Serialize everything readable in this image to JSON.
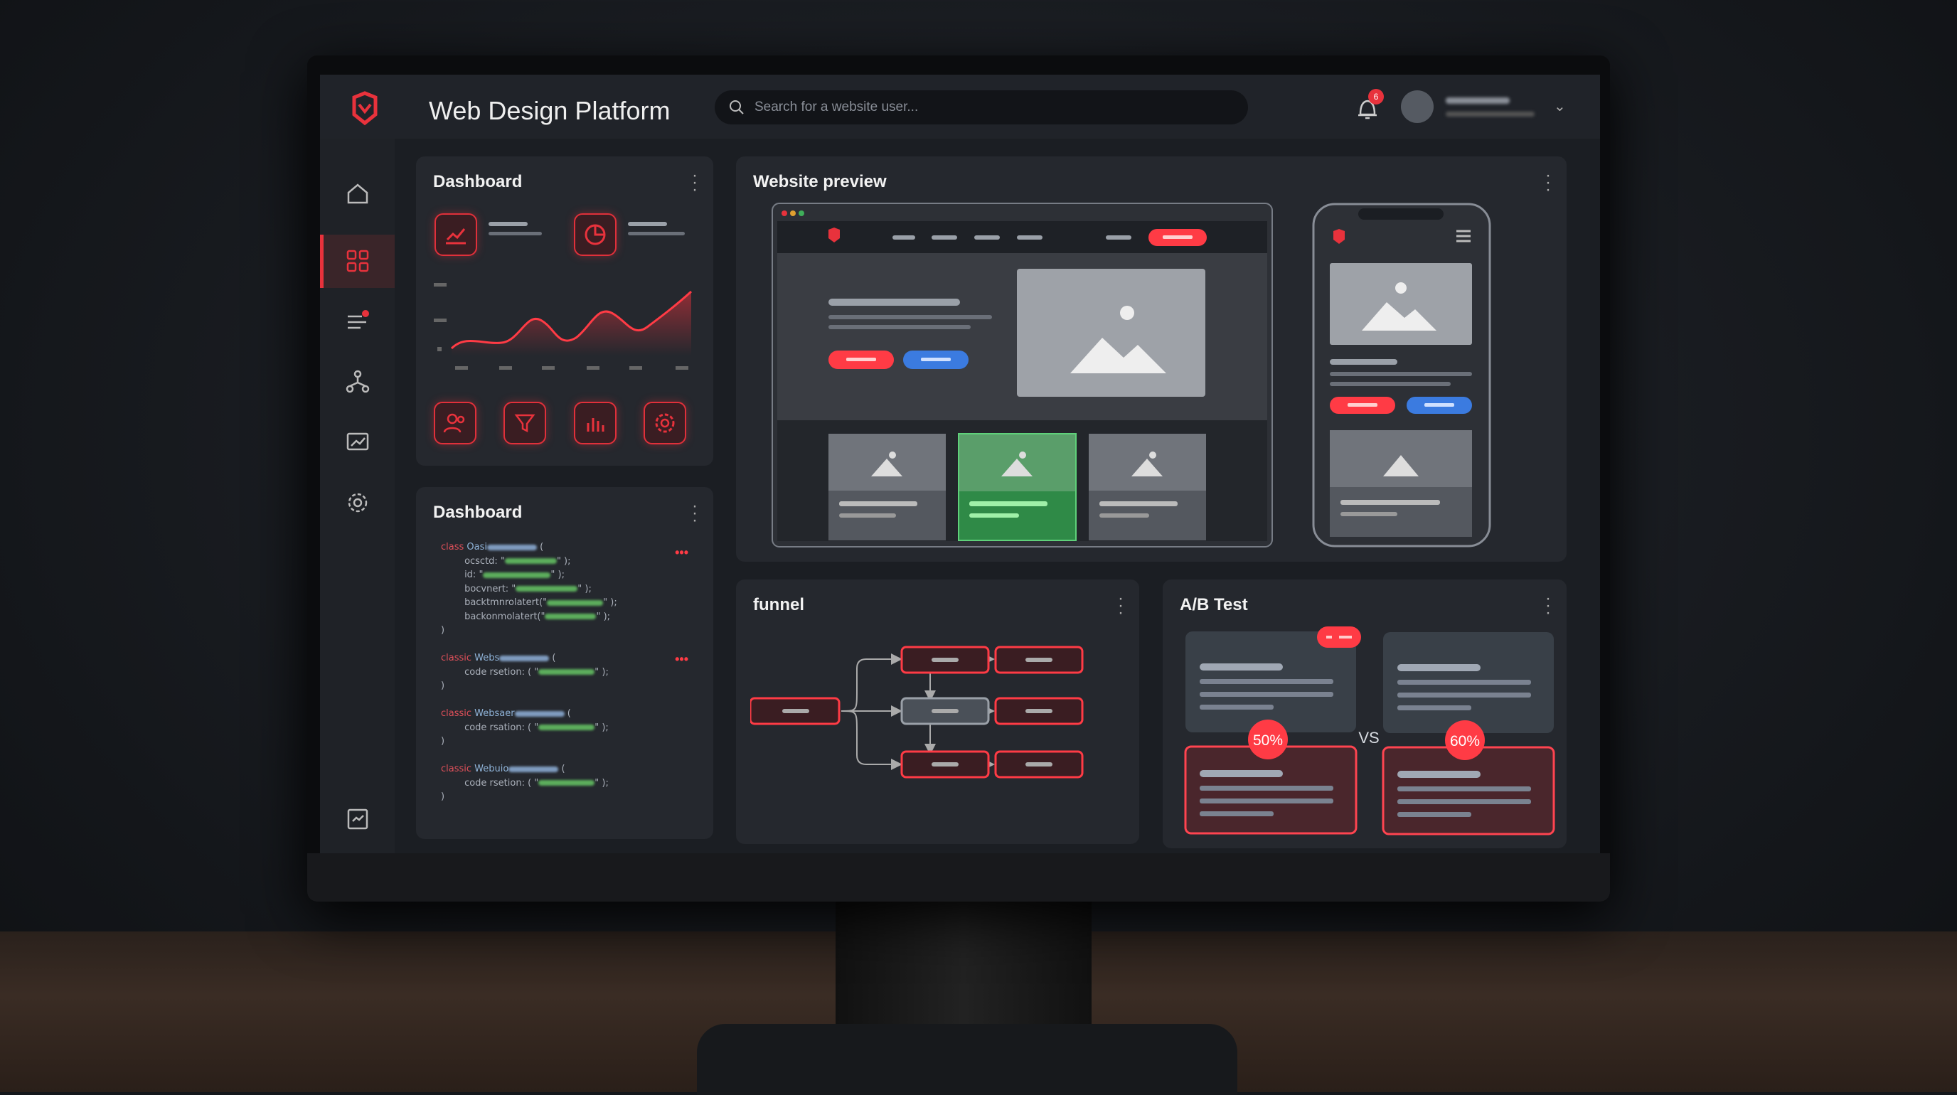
{
  "app": {
    "title": "Web Design Platform",
    "search_placeholder": "Search for a website user...",
    "notification_count": "6"
  },
  "sidebar": {
    "items": [
      {
        "icon": "home-icon"
      },
      {
        "icon": "grid-icon",
        "active": true
      },
      {
        "icon": "tasks-icon",
        "badge": true
      },
      {
        "icon": "network-icon"
      },
      {
        "icon": "monitor-chart-icon"
      },
      {
        "icon": "settings-icon"
      },
      {
        "icon": "report-icon"
      },
      {
        "icon": "logout-icon"
      }
    ]
  },
  "dashboard": {
    "title": "Dashboard",
    "tools": [
      "users-icon",
      "funnel-icon",
      "bar-chart-icon",
      "settings-icon"
    ]
  },
  "code_panel": {
    "title": "Dashboard",
    "blocks": [
      {
        "kw": "class",
        "name": "Oasi",
        "lines": [
          "ocsctd: \"",
          "id: \"",
          "bocvnert: \"",
          "backtmnrolatert(\"",
          "backonmolatert(\""
        ],
        "close": ")"
      },
      {
        "kw": "classic",
        "name": "Webs",
        "lines": [
          "code rsetion: ( \""
        ],
        "close": ")"
      },
      {
        "kw": "classic",
        "name": "Websaer",
        "lines": [
          "code rsation: ( \""
        ],
        "close": ")"
      },
      {
        "kw": "classic",
        "name": "Webuio",
        "lines": [
          "code rsetion: ( \""
        ],
        "close": ")"
      }
    ]
  },
  "preview": {
    "title": "Website preview"
  },
  "funnel": {
    "title": "funnel"
  },
  "ab_test": {
    "title": "A/B Test",
    "vs": "VS",
    "variant_a": "50%",
    "variant_b": "60%"
  },
  "colors": {
    "accent": "#e8323c",
    "blue": "#3b7be0",
    "green": "#3fae5a",
    "panel": "#25282e"
  }
}
